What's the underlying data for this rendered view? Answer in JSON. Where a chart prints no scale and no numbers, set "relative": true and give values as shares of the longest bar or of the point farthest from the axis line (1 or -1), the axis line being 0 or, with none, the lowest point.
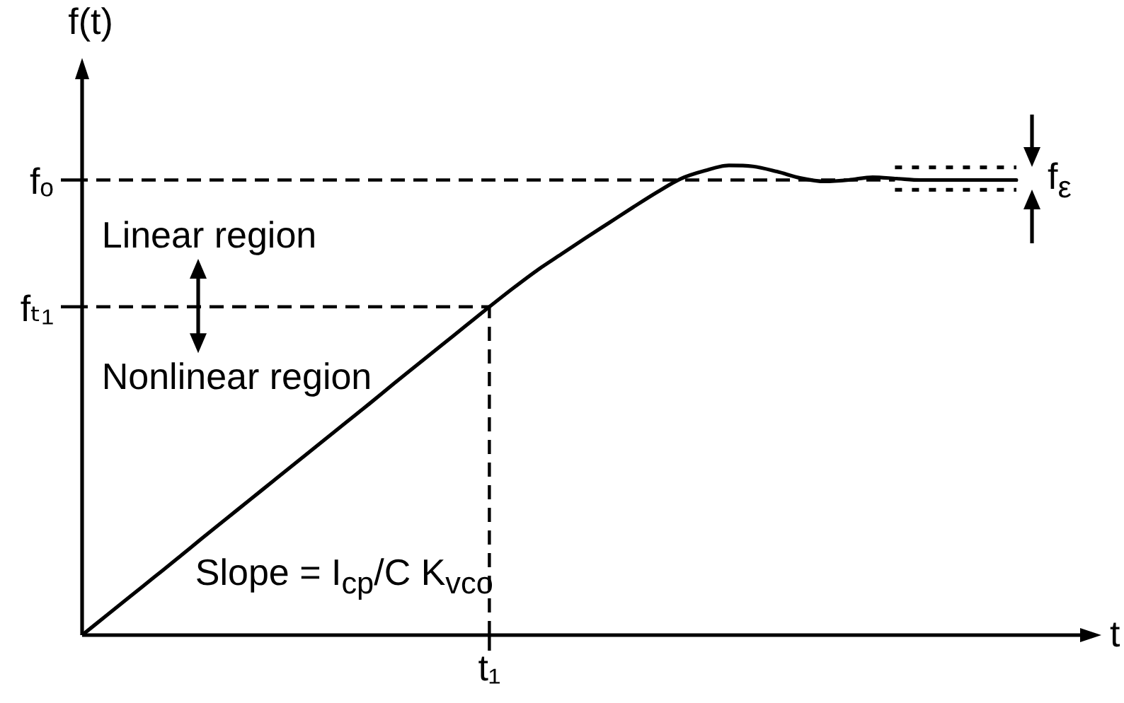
{
  "chart_data": {
    "type": "line",
    "xlabel": "t",
    "ylabel": "f(t)",
    "relative": true,
    "categories": [
      null,
      null,
      null,
      null,
      null,
      null,
      null,
      null,
      null,
      null,
      null,
      null,
      null,
      null,
      null,
      null,
      null,
      null,
      null,
      null,
      null,
      null,
      null,
      null,
      null,
      null,
      null,
      null,
      null,
      null,
      null,
      null,
      null,
      null,
      null,
      null,
      null,
      null,
      null,
      null
    ],
    "series": [
      {
        "color": "#000000",
        "values": [
          0,
          0.041,
          0.082,
          0.123,
          0.164,
          0.206,
          0.247,
          0.288,
          0.329,
          0.37,
          0.411,
          0.452,
          0.493,
          0.535,
          0.576,
          0.617,
          0.658,
          0.699,
          0.739,
          0.777,
          0.811,
          0.845,
          0.878,
          0.911,
          0.943,
          0.972,
          0.989,
          1,
          0.998,
          0.987,
          0.973,
          0.966,
          0.969,
          0.975,
          0.972,
          0.969,
          0.969,
          0.969,
          0.969,
          0.969
        ]
      }
    ],
    "marker": "none",
    "line_style": "solid",
    "ref_lines": [
      {
        "axis": "y",
        "value": 0.969,
        "label": "fₒ",
        "line_style": "dashed",
        "color": "#000000"
      },
      {
        "axis": "y",
        "value": 0.699,
        "label": "fₜ₁",
        "line_style": "dashed",
        "color": "#000000"
      },
      {
        "axis": "y",
        "value": 0.996,
        "line_style": "dotted",
        "color": "#000000"
      },
      {
        "axis": "y",
        "value": 0.948,
        "line_style": "dotted",
        "color": "#000000"
      }
    ],
    "annotations": [
      "Linear region",
      "Nonlinear region",
      "Slope = I$_{cp}$/C K$_{vco}$",
      "t₁",
      "f$_{ε}$"
    ]
  }
}
